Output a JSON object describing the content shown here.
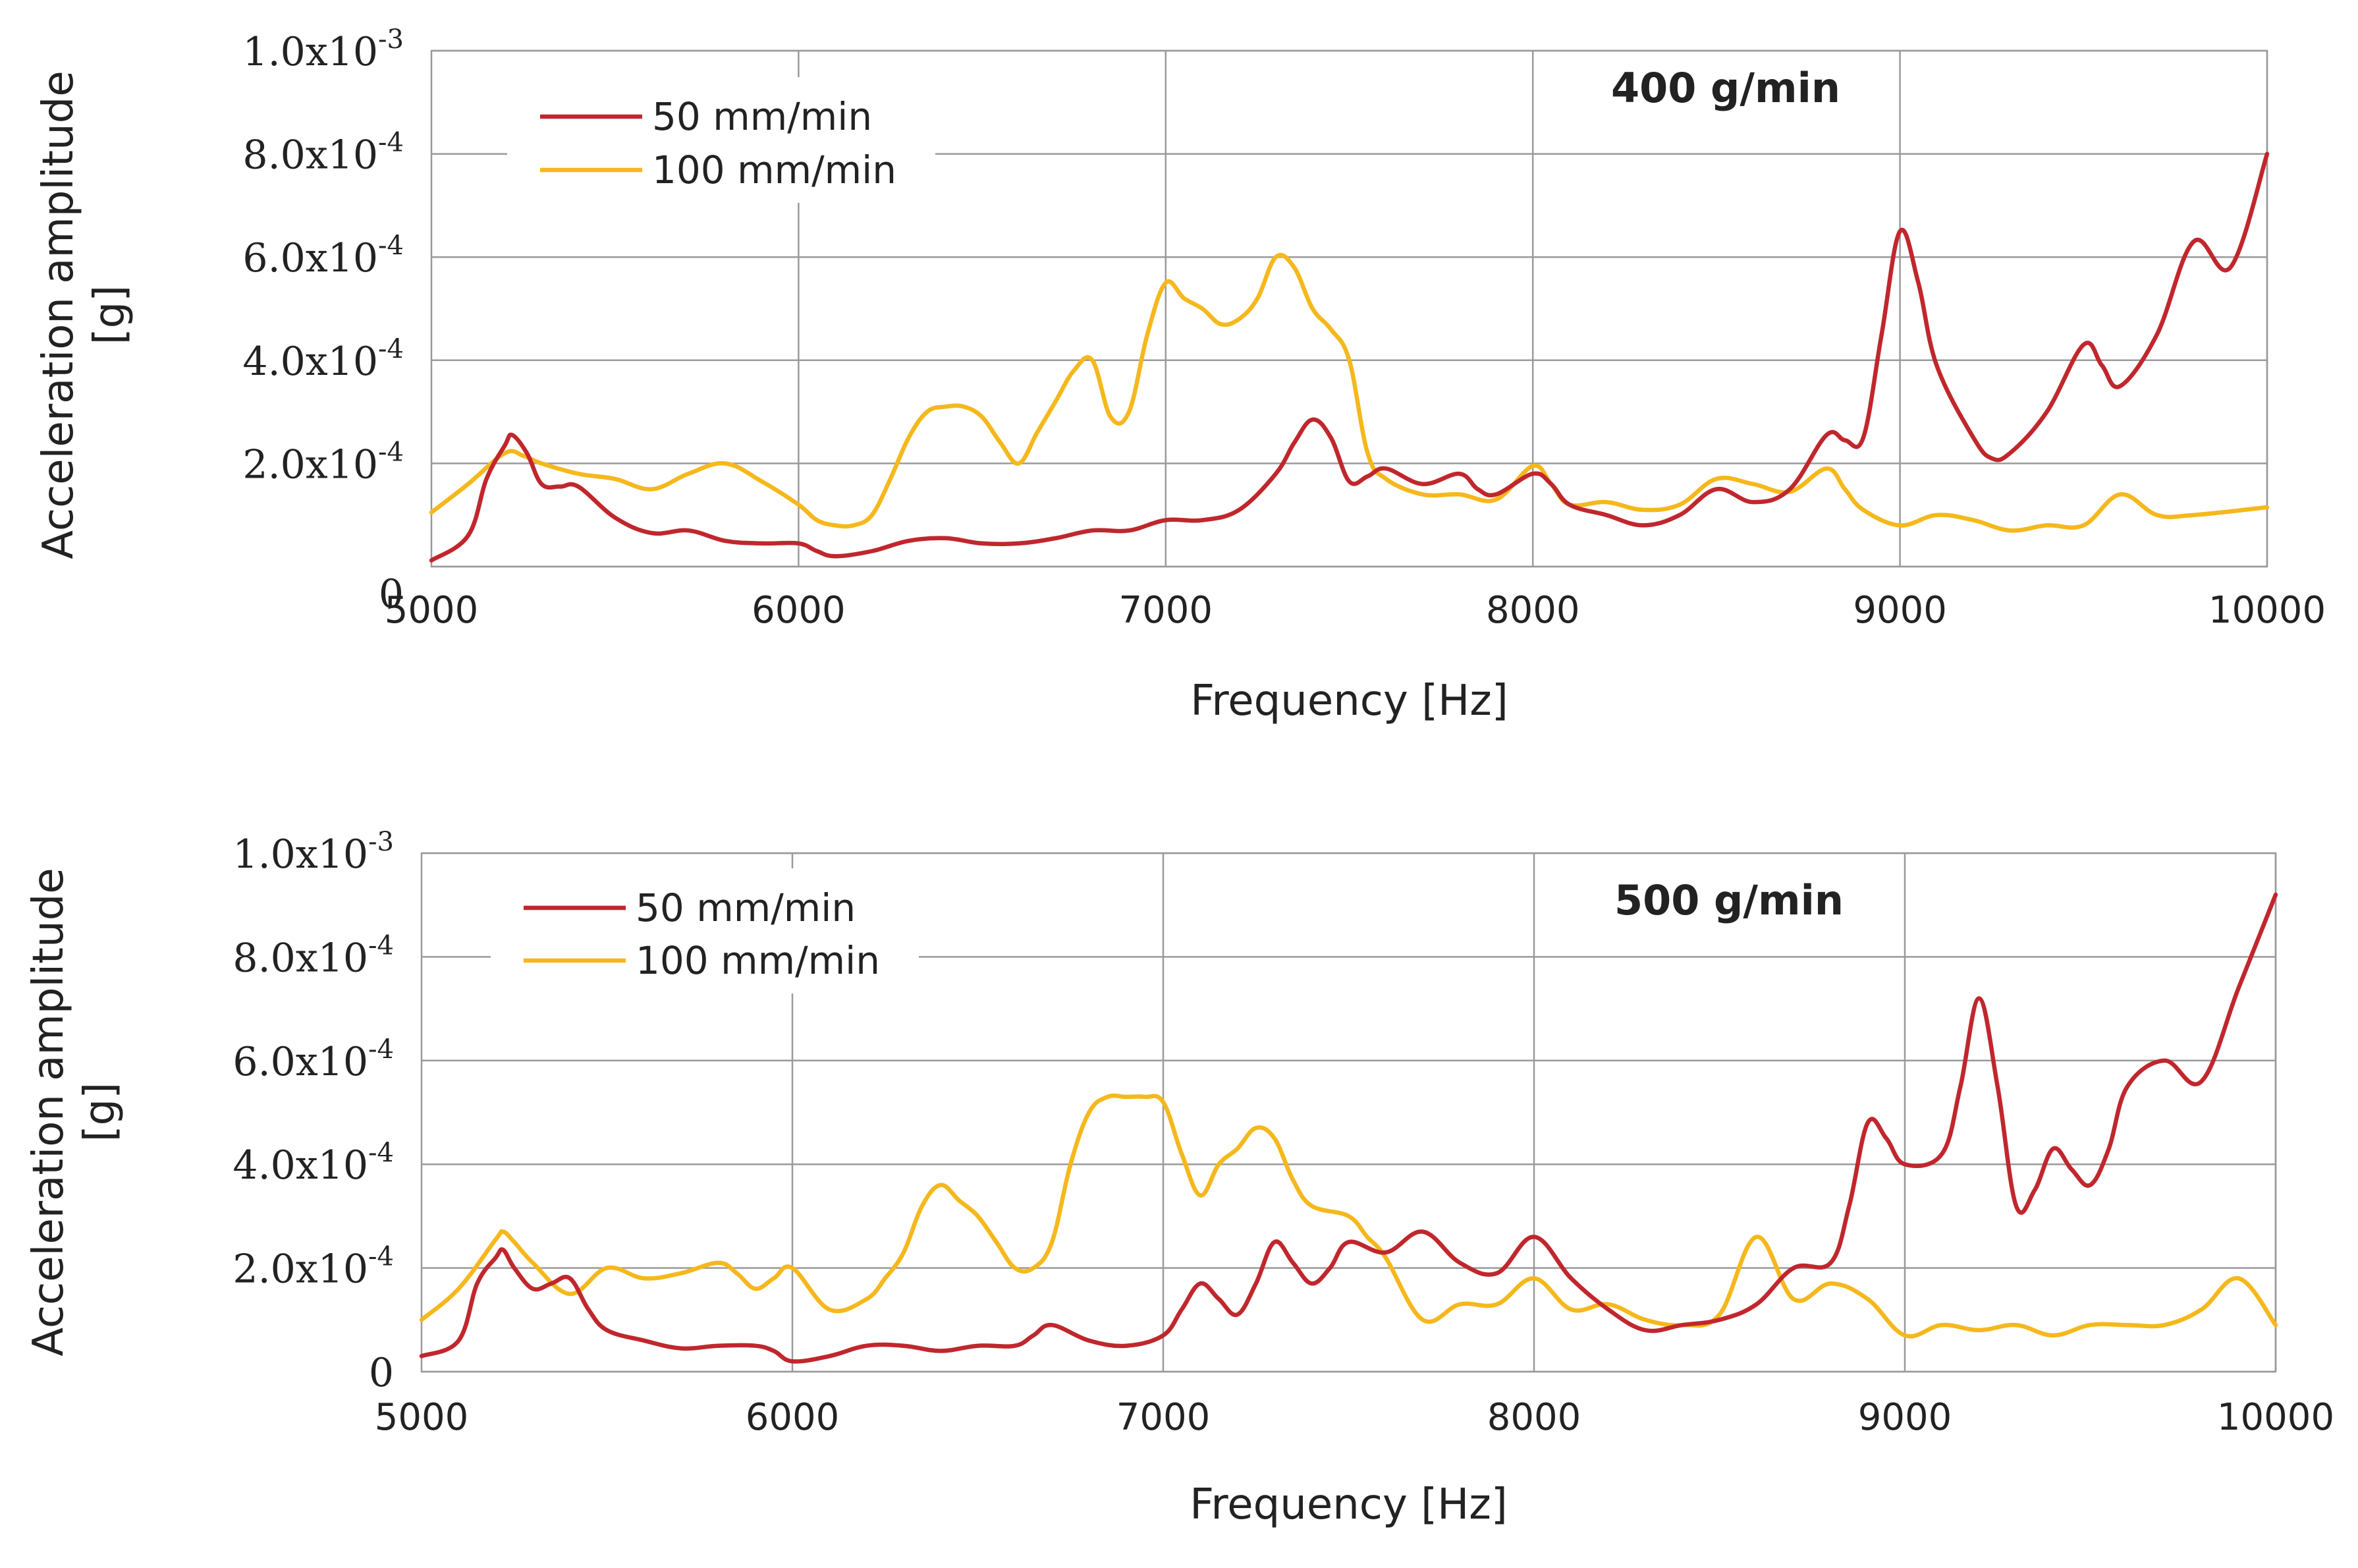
{
  "chart_data": [
    {
      "type": "line",
      "annotation": "400 g/min",
      "xlabel": "Frequency [Hz]",
      "ylabel": [
        "Acceleration amplitude",
        "[g]"
      ],
      "xlim": [
        5000,
        10000
      ],
      "ylim": [
        0,
        0.001
      ],
      "x_ticks": [
        "5000",
        "6000",
        "7000",
        "8000",
        "9000",
        "10000"
      ],
      "y_ticks": [
        {
          "mant": "0",
          "exp": ""
        },
        {
          "mant": "2.0x10",
          "exp": "-4"
        },
        {
          "mant": "4.0x10",
          "exp": "-4"
        },
        {
          "mant": "6.0x10",
          "exp": "-4"
        },
        {
          "mant": "8.0x10",
          "exp": "-4"
        },
        {
          "mant": "1.0x10",
          "exp": "-3"
        }
      ],
      "grid": true,
      "legend_position": "top-left",
      "series": [
        {
          "name": "50 mm/min",
          "color": "#c0272d",
          "x": [
            5000,
            5100,
            5150,
            5200,
            5220,
            5260,
            5300,
            5350,
            5400,
            5500,
            5600,
            5700,
            5800,
            5900,
            6000,
            6050,
            6100,
            6200,
            6300,
            6400,
            6500,
            6600,
            6700,
            6800,
            6900,
            7000,
            7100,
            7200,
            7300,
            7350,
            7400,
            7450,
            7500,
            7550,
            7600,
            7700,
            7800,
            7850,
            7900,
            8000,
            8050,
            8100,
            8200,
            8300,
            8400,
            8500,
            8600,
            8700,
            8800,
            8850,
            8900,
            8950,
            9000,
            9050,
            9100,
            9200,
            9250,
            9300,
            9400,
            9500,
            9550,
            9600,
            9700,
            9800,
            9900,
            10000
          ],
          "y": [
            1.2e-05,
            6e-05,
            0.00017,
            0.000235,
            0.000255,
            0.00022,
            0.00016,
            0.000155,
            0.000155,
            9.5e-05,
            6.5e-05,
            7e-05,
            5e-05,
            4.5e-05,
            4.5e-05,
            3e-05,
            2e-05,
            3e-05,
            5e-05,
            5.5e-05,
            4.5e-05,
            4.5e-05,
            5.5e-05,
            7e-05,
            7e-05,
            9e-05,
            9e-05,
            0.00011,
            0.00018,
            0.00024,
            0.000285,
            0.00025,
            0.000165,
            0.000175,
            0.00019,
            0.00016,
            0.00018,
            0.00015,
            0.00014,
            0.00018,
            0.00016,
            0.00012,
            0.0001,
            8e-05,
            0.0001,
            0.00015,
            0.000125,
            0.00015,
            0.000255,
            0.000245,
            0.00025,
            0.00045,
            0.00065,
            0.00055,
            0.00039,
            0.00025,
            0.00021,
            0.00022,
            0.0003,
            0.00043,
            0.00039,
            0.00035,
            0.00045,
            0.00063,
            0.00058,
            0.0008
          ]
        },
        {
          "name": "100 mm/min",
          "color": "#f5b81c",
          "x": [
            5000,
            5100,
            5200,
            5250,
            5300,
            5400,
            5500,
            5600,
            5700,
            5800,
            5900,
            6000,
            6050,
            6100,
            6150,
            6200,
            6250,
            6300,
            6350,
            6400,
            6450,
            6500,
            6550,
            6600,
            6650,
            6700,
            6750,
            6800,
            6850,
            6900,
            6950,
            7000,
            7050,
            7100,
            7150,
            7200,
            7250,
            7300,
            7350,
            7400,
            7450,
            7500,
            7550,
            7600,
            7700,
            7800,
            7900,
            8000,
            8050,
            8100,
            8200,
            8300,
            8400,
            8500,
            8600,
            8700,
            8800,
            8850,
            8900,
            9000,
            9100,
            9200,
            9300,
            9400,
            9500,
            9600,
            9700,
            9800,
            10000
          ],
          "y": [
            0.000105,
            0.00016,
            0.00022,
            0.000215,
            0.0002,
            0.00018,
            0.00017,
            0.00015,
            0.00018,
            0.0002,
            0.000165,
            0.00012,
            9e-05,
            8e-05,
            8e-05,
            0.0001,
            0.00017,
            0.00025,
            0.0003,
            0.00031,
            0.00031,
            0.00029,
            0.00024,
            0.0002,
            0.00026,
            0.00032,
            0.00038,
            0.0004,
            0.00029,
            0.0003,
            0.00045,
            0.00055,
            0.00052,
            0.0005,
            0.00047,
            0.00048,
            0.00052,
            0.0006,
            0.00058,
            0.0005,
            0.00046,
            0.0004,
            0.00022,
            0.00017,
            0.00014,
            0.00014,
            0.00013,
            0.000195,
            0.00016,
            0.00012,
            0.000125,
            0.00011,
            0.00012,
            0.00017,
            0.00016,
            0.000145,
            0.00019,
            0.00015,
            0.00011,
            8e-05,
            0.0001,
            9e-05,
            7e-05,
            8e-05,
            8e-05,
            0.00014,
            0.0001,
            0.0001,
            0.000115
          ]
        }
      ]
    },
    {
      "type": "line",
      "annotation": "500 g/min",
      "xlabel": "Frequency [Hz]",
      "ylabel": [
        "Acceleration amplitude",
        "[g]"
      ],
      "xlim": [
        5000,
        10000
      ],
      "ylim": [
        0,
        0.001
      ],
      "x_ticks": [
        "5000",
        "6000",
        "7000",
        "8000",
        "9000",
        "10000"
      ],
      "y_ticks": [
        {
          "mant": "0",
          "exp": ""
        },
        {
          "mant": "2.0x10",
          "exp": "-4"
        },
        {
          "mant": "4.0x10",
          "exp": "-4"
        },
        {
          "mant": "6.0x10",
          "exp": "-4"
        },
        {
          "mant": "8.0x10",
          "exp": "-4"
        },
        {
          "mant": "1.0x10",
          "exp": "-3"
        }
      ],
      "grid": true,
      "legend_position": "top-left",
      "series": [
        {
          "name": "50 mm/min",
          "color": "#c0272d",
          "x": [
            5000,
            5100,
            5150,
            5200,
            5220,
            5250,
            5300,
            5350,
            5400,
            5450,
            5500,
            5600,
            5700,
            5800,
            5900,
            5950,
            6000,
            6100,
            6200,
            6300,
            6400,
            6500,
            6600,
            6650,
            6700,
            6800,
            6900,
            7000,
            7050,
            7100,
            7150,
            7200,
            7250,
            7300,
            7350,
            7400,
            7450,
            7500,
            7600,
            7700,
            7800,
            7900,
            8000,
            8100,
            8200,
            8300,
            8400,
            8500,
            8600,
            8700,
            8800,
            8850,
            8900,
            8950,
            9000,
            9100,
            9150,
            9200,
            9250,
            9300,
            9350,
            9400,
            9450,
            9500,
            9550,
            9600,
            9700,
            9800,
            9900,
            10000
          ],
          "y": [
            3e-05,
            6e-05,
            0.00017,
            0.00022,
            0.000235,
            0.0002,
            0.00016,
            0.00017,
            0.00018,
            0.00012,
            8e-05,
            6e-05,
            4.5e-05,
            5e-05,
            5e-05,
            4e-05,
            2e-05,
            3e-05,
            5e-05,
            5e-05,
            4e-05,
            5e-05,
            5e-05,
            7e-05,
            9e-05,
            6e-05,
            5e-05,
            7e-05,
            0.00012,
            0.00017,
            0.00014,
            0.00011,
            0.00017,
            0.00025,
            0.00021,
            0.00017,
            0.0002,
            0.00025,
            0.00023,
            0.00027,
            0.00021,
            0.00019,
            0.00026,
            0.00018,
            0.00012,
            8e-05,
            9e-05,
            0.0001,
            0.00013,
            0.0002,
            0.00021,
            0.00032,
            0.00048,
            0.00045,
            0.0004,
            0.00042,
            0.00055,
            0.00072,
            0.00055,
            0.00032,
            0.00035,
            0.00043,
            0.00039,
            0.00036,
            0.00043,
            0.00055,
            0.0006,
            0.00056,
            0.00074,
            0.00092
          ]
        },
        {
          "name": "100 mm/min",
          "color": "#f5b81c",
          "x": [
            5000,
            5100,
            5200,
            5220,
            5250,
            5300,
            5400,
            5500,
            5600,
            5700,
            5800,
            5850,
            5900,
            5950,
            6000,
            6100,
            6200,
            6250,
            6300,
            6350,
            6400,
            6450,
            6500,
            6550,
            6600,
            6650,
            6700,
            6750,
            6800,
            6850,
            6900,
            6950,
            7000,
            7050,
            7100,
            7150,
            7200,
            7250,
            7300,
            7350,
            7400,
            7500,
            7550,
            7600,
            7700,
            7800,
            7900,
            8000,
            8100,
            8200,
            8300,
            8400,
            8500,
            8600,
            8700,
            8800,
            8900,
            9000,
            9100,
            9200,
            9300,
            9400,
            9500,
            9600,
            9700,
            9800,
            9900,
            10000
          ],
          "y": [
            0.0001,
            0.00016,
            0.000255,
            0.00027,
            0.00025,
            0.00021,
            0.00015,
            0.0002,
            0.00018,
            0.00019,
            0.00021,
            0.00019,
            0.00016,
            0.00018,
            0.0002,
            0.00012,
            0.00014,
            0.00018,
            0.00023,
            0.00032,
            0.00036,
            0.00033,
            0.0003,
            0.00025,
            0.0002,
            0.0002,
            0.00025,
            0.0004,
            0.0005,
            0.00053,
            0.00053,
            0.00053,
            0.00052,
            0.00042,
            0.00034,
            0.0004,
            0.00043,
            0.00047,
            0.00045,
            0.00037,
            0.00032,
            0.0003,
            0.00026,
            0.00022,
            0.0001,
            0.00013,
            0.00013,
            0.00018,
            0.00012,
            0.00013,
            0.0001,
            9e-05,
            0.00011,
            0.00026,
            0.00014,
            0.00017,
            0.00014,
            7e-05,
            9e-05,
            8e-05,
            9e-05,
            7e-05,
            9e-05,
            9e-05,
            9e-05,
            0.00012,
            0.00018,
            9e-05
          ]
        }
      ]
    }
  ]
}
